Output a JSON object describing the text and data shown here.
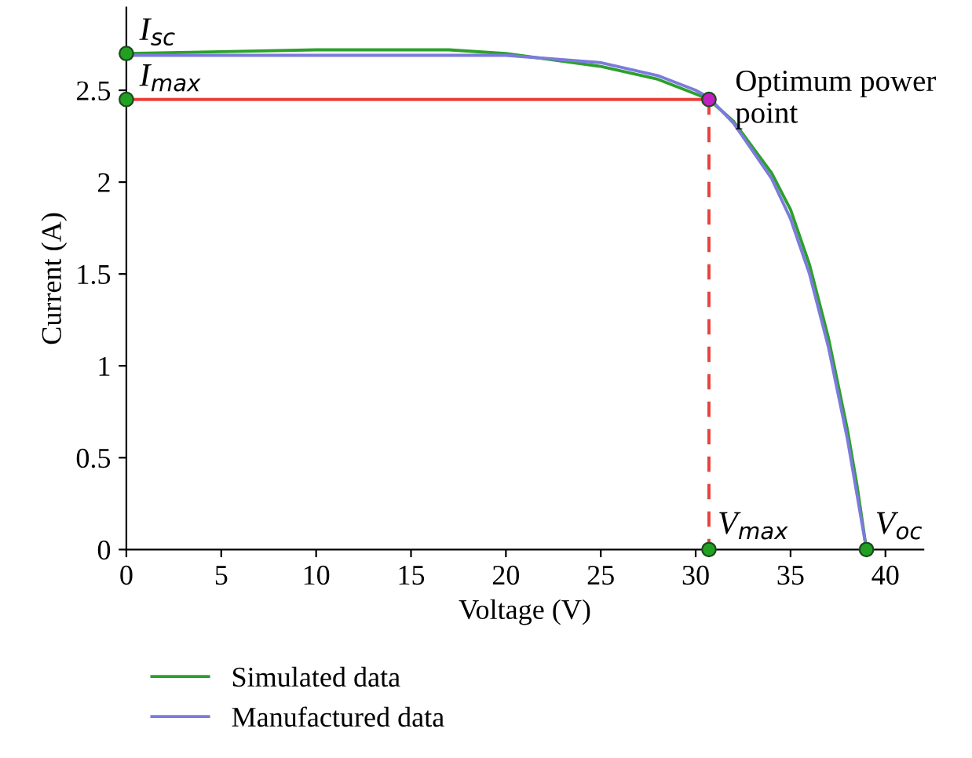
{
  "chart_data": {
    "type": "line",
    "xlabel": "Voltage (V)",
    "ylabel": "Current (A)",
    "xlim": [
      0,
      42
    ],
    "ylim": [
      0,
      2.95
    ],
    "xticks": [
      0,
      5,
      10,
      15,
      20,
      25,
      30,
      35,
      40
    ],
    "yticks": [
      0,
      0.5,
      1,
      1.5,
      2,
      2.5
    ],
    "grid": false,
    "legend": "bottom left",
    "marker": "none",
    "line_style": "solid",
    "series": [
      {
        "name": "Simulated data",
        "color": "#2ca02c",
        "x": [
          0,
          5,
          10,
          15,
          17,
          20,
          25,
          28,
          30,
          30.7,
          32,
          34,
          35,
          36,
          37,
          38,
          38.5,
          39
        ],
        "values": [
          2.7,
          2.71,
          2.72,
          2.72,
          2.72,
          2.7,
          2.63,
          2.56,
          2.48,
          2.45,
          2.33,
          2.05,
          1.85,
          1.55,
          1.15,
          0.65,
          0.35,
          0
        ]
      },
      {
        "name": "Manufactured data",
        "color": "#7b7bdc",
        "x": [
          0,
          5,
          10,
          15,
          20,
          25,
          28,
          30,
          30.7,
          32,
          34,
          35,
          36,
          37,
          38,
          39
        ],
        "values": [
          2.69,
          2.69,
          2.69,
          2.69,
          2.69,
          2.65,
          2.58,
          2.5,
          2.46,
          2.32,
          2.02,
          1.8,
          1.5,
          1.1,
          0.6,
          0
        ]
      },
      {
        "type": "line",
        "color": "#e8413c",
        "line_style": "solid",
        "x": [
          0,
          30.7
        ],
        "values": [
          2.45,
          2.45
        ]
      },
      {
        "type": "line",
        "color": "#e8413c",
        "line_style": "dashed",
        "x": [
          30.7,
          30.7
        ],
        "values": [
          2.45,
          0
        ]
      },
      {
        "type": "scatter",
        "color": "#22a022",
        "marker": "circle",
        "x": [
          0,
          0,
          30.7,
          39
        ],
        "values": [
          2.7,
          2.45,
          0,
          0
        ]
      },
      {
        "type": "scatter",
        "color": "#c020c0",
        "marker": "circle",
        "x": [
          30.7
        ],
        "values": [
          2.45
        ]
      }
    ],
    "annotations": [
      {
        "text": "I$_{sc}$",
        "x": 0,
        "y": 2.7
      },
      {
        "text": "I$_{max}$",
        "x": 0,
        "y": 2.45
      },
      {
        "text": "Optimum power point",
        "x": 30.7,
        "y": 2.45
      },
      {
        "text": "V$_{max}$",
        "x": 30.7,
        "y": 0
      },
      {
        "text": "V$_{oc}$",
        "x": 39,
        "y": 0
      }
    ]
  }
}
